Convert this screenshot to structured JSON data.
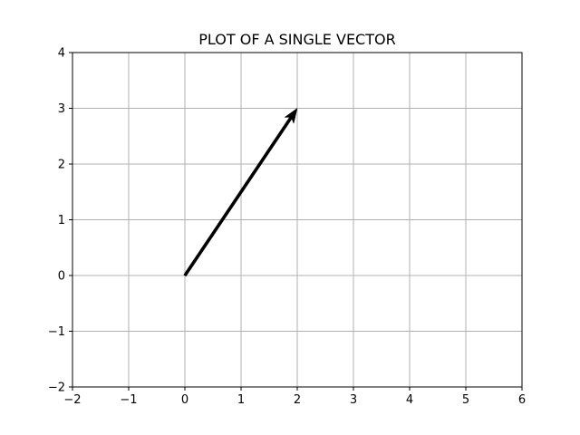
{
  "chart_data": {
    "type": "quiver",
    "title": "PLOT OF A SINGLE VECTOR",
    "xlabel": "",
    "ylabel": "",
    "xlim": [
      -2,
      6
    ],
    "ylim": [
      -2,
      4
    ],
    "xticks": [
      -2,
      -1,
      0,
      1,
      2,
      3,
      4,
      5,
      6
    ],
    "yticks": [
      -2,
      -1,
      0,
      1,
      2,
      3,
      4
    ],
    "grid": true,
    "vectors": [
      {
        "origin": [
          0,
          0
        ],
        "components": [
          2,
          3
        ],
        "color": "#000000"
      }
    ]
  }
}
